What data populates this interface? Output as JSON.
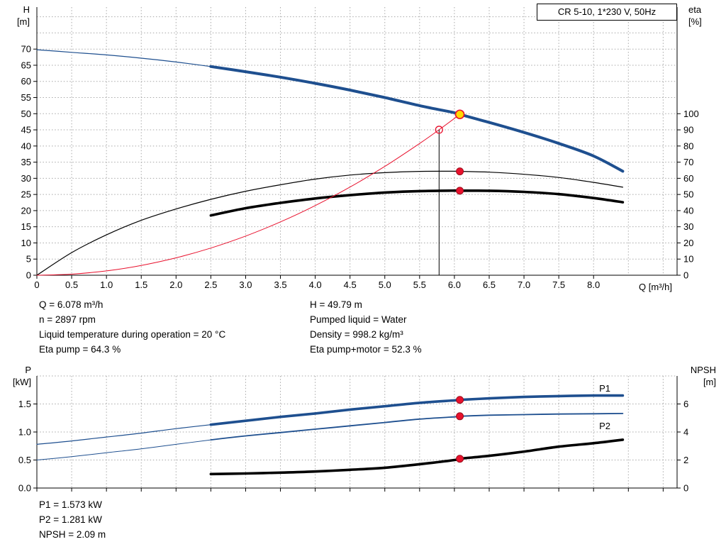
{
  "colors": {
    "blue": "#1e4f8f",
    "red": "#e8112d",
    "black": "#000000",
    "yellow": "#ffd800",
    "grid": "#a8a8a8"
  },
  "axis_corner_labels": {
    "top_left": [
      "H",
      "[m]"
    ],
    "top_right": [
      "eta",
      "[%]"
    ],
    "bottom_left": [
      "P",
      "[kW]"
    ],
    "bottom_right": [
      "NPSH",
      "[m]"
    ]
  },
  "info_top_left": [
    "Q = 6.078 m³/h",
    "n = 2897 rpm",
    "Liquid temperature during operation = 20 °C",
    "Eta pump = 64.3 %"
  ],
  "info_top_right": [
    "H = 49.79 m",
    "Pumped liquid = Water",
    "Density = 998.2 kg/m³",
    "Eta pump+motor = 52.3 %"
  ],
  "info_bottom": [
    "P1 = 1.573 kW",
    "P2 = 1.281 kW",
    "NPSH = 2.09 m"
  ],
  "chart_data": [
    {
      "id": "top",
      "type": "line",
      "title": "CR 5-10, 1*230 V, 50Hz",
      "x_axis": {
        "label": "Q [m³/h]",
        "min": 0,
        "max": 9.2,
        "grid_step": 0.5,
        "label_max": 8,
        "decimals": 1,
        "show_labels": true
      },
      "left_axis": {
        "label": "H [m]",
        "min": 0,
        "max": 83,
        "grid_step": 5,
        "label_max": 70,
        "decimals": 0
      },
      "right_axis": {
        "label": "eta [%]",
        "min": 0,
        "max": 166,
        "grid_step": 10,
        "label_max": 100,
        "decimals": 0
      },
      "series": [
        {
          "name": "head-curve",
          "axis": "left",
          "color": "blue",
          "thin_width": 1.2,
          "thick_width": 4,
          "split_at": 2.5,
          "points": [
            [
              0,
              69.8
            ],
            [
              0.5,
              69
            ],
            [
              1,
              68.2
            ],
            [
              1.5,
              67.2
            ],
            [
              2,
              66
            ],
            [
              2.5,
              64.6
            ],
            [
              3,
              63
            ],
            [
              3.5,
              61.3
            ],
            [
              4,
              59.4
            ],
            [
              4.5,
              57.3
            ],
            [
              5,
              55
            ],
            [
              5.5,
              52.5
            ],
            [
              6,
              50.3
            ],
            [
              6.078,
              49.79
            ],
            [
              6.5,
              47.3
            ],
            [
              7,
              44.2
            ],
            [
              7.5,
              40.8
            ],
            [
              8,
              36.9
            ],
            [
              8.42,
              32.2
            ]
          ]
        },
        {
          "name": "eta-pump-curve",
          "axis": "right",
          "color": "black",
          "thin_width": 1.2,
          "points": [
            [
              0,
              0
            ],
            [
              0.5,
              14
            ],
            [
              1,
              25
            ],
            [
              1.5,
              34
            ],
            [
              2,
              41
            ],
            [
              2.5,
              47
            ],
            [
              3,
              52
            ],
            [
              3.5,
              56
            ],
            [
              4,
              59.5
            ],
            [
              4.5,
              62
            ],
            [
              5,
              63.5
            ],
            [
              5.5,
              64.3
            ],
            [
              6,
              64.4
            ],
            [
              6.078,
              64.3
            ],
            [
              6.5,
              63.8
            ],
            [
              7,
              62.5
            ],
            [
              7.5,
              60.5
            ],
            [
              8,
              57.5
            ],
            [
              8.42,
              54.5
            ]
          ]
        },
        {
          "name": "eta-pump-motor-curve",
          "axis": "right",
          "color": "black",
          "thick_width": 3.6,
          "points": [
            [
              2.5,
              37
            ],
            [
              3,
              41.5
            ],
            [
              3.5,
              44.8
            ],
            [
              4,
              47.5
            ],
            [
              4.5,
              49.6
            ],
            [
              5,
              51.2
            ],
            [
              5.5,
              52.1
            ],
            [
              6,
              52.4
            ],
            [
              6.078,
              52.3
            ],
            [
              6.5,
              52.3
            ],
            [
              7,
              51.6
            ],
            [
              7.5,
              50.2
            ],
            [
              8,
              47.8
            ],
            [
              8.42,
              45.2
            ]
          ]
        },
        {
          "name": "system-curve",
          "axis": "left",
          "color": "red",
          "thin_width": 1,
          "points": [
            [
              0,
              0
            ],
            [
              0.5,
              0.34
            ],
            [
              1,
              1.35
            ],
            [
              1.5,
              3.03
            ],
            [
              2,
              5.39
            ],
            [
              2.5,
              8.42
            ],
            [
              3,
              12.13
            ],
            [
              3.5,
              16.51
            ],
            [
              4,
              21.56
            ],
            [
              4.5,
              27.29
            ],
            [
              5,
              33.69
            ],
            [
              5.5,
              40.77
            ],
            [
              5.78,
              45.03
            ],
            [
              6.078,
              49.79
            ]
          ]
        }
      ],
      "vline": {
        "x": 5.78,
        "to": 45.03,
        "axis": "left"
      },
      "markers": [
        {
          "name": "duty-point-marker",
          "axis": "left",
          "x": 6.078,
          "y": 49.79,
          "style": "operating"
        },
        {
          "name": "requested-duty-marker",
          "axis": "left",
          "x": 5.78,
          "y": 45.03,
          "style": "open"
        },
        {
          "name": "eta-pump-marker",
          "axis": "right",
          "x": 6.078,
          "y": 64.3,
          "style": "dot"
        },
        {
          "name": "eta-pump-motor-marker",
          "axis": "right",
          "x": 6.078,
          "y": 52.3,
          "style": "dot"
        }
      ]
    },
    {
      "id": "bottom",
      "type": "line",
      "title": "",
      "x_axis": {
        "label": "Q [m³/h]",
        "min": 0,
        "max": 9.2,
        "grid_step": 0.5,
        "label_max": 9,
        "decimals": 1,
        "show_labels": false
      },
      "left_axis": {
        "label": "P [kW]",
        "min": 0,
        "max": 2,
        "grid_step": 0.5,
        "label_max": 1.5,
        "decimals": 1
      },
      "right_axis": {
        "label": "NPSH [m]",
        "min": 0,
        "max": 8,
        "grid_step": 2,
        "label_max": 6,
        "decimals": 0
      },
      "series": [
        {
          "name": "p1-curve",
          "axis": "left",
          "color": "blue",
          "thin_width": 1.2,
          "thick_width": 3.6,
          "split_at": 2.5,
          "label": {
            "text": "P1",
            "x": 8.08,
            "y": 1.72
          },
          "points": [
            [
              0,
              0.78
            ],
            [
              0.5,
              0.84
            ],
            [
              1,
              0.91
            ],
            [
              1.5,
              0.98
            ],
            [
              2,
              1.06
            ],
            [
              2.5,
              1.13
            ],
            [
              3,
              1.2
            ],
            [
              3.5,
              1.27
            ],
            [
              4,
              1.33
            ],
            [
              4.5,
              1.4
            ],
            [
              5,
              1.46
            ],
            [
              5.5,
              1.52
            ],
            [
              6,
              1.565
            ],
            [
              6.078,
              1.573
            ],
            [
              6.5,
              1.6
            ],
            [
              7,
              1.625
            ],
            [
              7.5,
              1.64
            ],
            [
              8,
              1.65
            ],
            [
              8.42,
              1.65
            ]
          ]
        },
        {
          "name": "p2-curve",
          "axis": "left",
          "color": "blue",
          "thin_width": 1,
          "thick_width": 1.8,
          "split_at": 2.5,
          "label": {
            "text": "P2",
            "x": 8.08,
            "y": 1.05
          },
          "points": [
            [
              0,
              0.5
            ],
            [
              0.5,
              0.56
            ],
            [
              1,
              0.63
            ],
            [
              1.5,
              0.7
            ],
            [
              2,
              0.78
            ],
            [
              2.5,
              0.86
            ],
            [
              3,
              0.93
            ],
            [
              3.5,
              0.99
            ],
            [
              4,
              1.05
            ],
            [
              4.5,
              1.11
            ],
            [
              5,
              1.17
            ],
            [
              5.5,
              1.23
            ],
            [
              6,
              1.27
            ],
            [
              6.078,
              1.281
            ],
            [
              6.5,
              1.3
            ],
            [
              7,
              1.31
            ],
            [
              7.5,
              1.32
            ],
            [
              8,
              1.325
            ],
            [
              8.42,
              1.33
            ]
          ]
        },
        {
          "name": "npsh-curve",
          "axis": "right",
          "color": "black",
          "thick_width": 3.6,
          "points": [
            [
              2.5,
              1
            ],
            [
              3,
              1.04
            ],
            [
              3.5,
              1.1
            ],
            [
              4,
              1.18
            ],
            [
              4.5,
              1.3
            ],
            [
              5,
              1.45
            ],
            [
              5.5,
              1.7
            ],
            [
              6,
              2
            ],
            [
              6.078,
              2.09
            ],
            [
              6.5,
              2.3
            ],
            [
              7,
              2.6
            ],
            [
              7.5,
              2.95
            ],
            [
              8,
              3.2
            ],
            [
              8.42,
              3.45
            ]
          ]
        }
      ],
      "markers": [
        {
          "name": "p1-marker",
          "axis": "left",
          "x": 6.078,
          "y": 1.573,
          "style": "dot"
        },
        {
          "name": "p2-marker",
          "axis": "left",
          "x": 6.078,
          "y": 1.281,
          "style": "dot"
        },
        {
          "name": "npsh-marker",
          "axis": "right",
          "x": 6.078,
          "y": 2.09,
          "style": "dot"
        }
      ]
    }
  ]
}
